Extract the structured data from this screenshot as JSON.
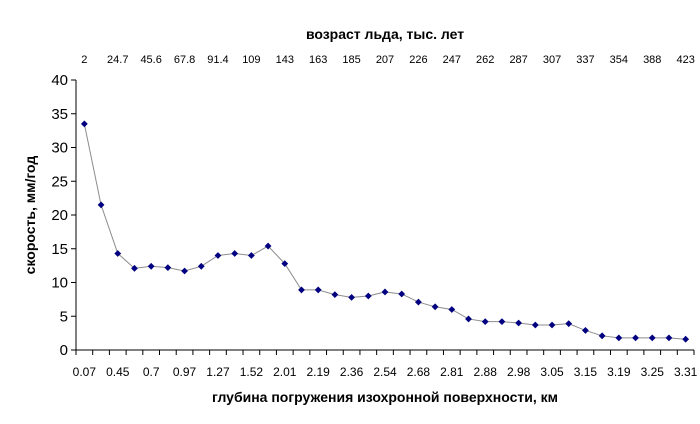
{
  "chart_data": {
    "type": "line",
    "title": "",
    "xlabel": "глубина погружения изохронной поверхности, км",
    "x2label": "возраст льда, тыс. лет",
    "ylabel": "скорость, мм/год",
    "ylim": [
      0,
      40
    ],
    "yticks": [
      "0",
      "5",
      "10",
      "15",
      "20",
      "25",
      "30",
      "35",
      "40"
    ],
    "grid": false,
    "legend": "none",
    "marker": "diamond",
    "colors": {
      "marker": "#000080",
      "line": "#8c8c8c",
      "axis": "#000000"
    },
    "bottom_tick_labels": [
      "0.07",
      "0.45",
      "0.7",
      "0.97",
      "1.27",
      "1.52",
      "2.01",
      "2.19",
      "2.36",
      "2.54",
      "2.68",
      "2.81",
      "2.88",
      "2.98",
      "3.05",
      "3.15",
      "3.19",
      "3.25",
      "3.31"
    ],
    "top_tick_labels": [
      "2",
      "24.7",
      "45.6",
      "67.8",
      "91.4",
      "109",
      "143",
      "163",
      "185",
      "207",
      "226",
      "247",
      "262",
      "287",
      "307",
      "337",
      "354",
      "388",
      "423"
    ],
    "series": [
      {
        "values": [
          33.5,
          21.5,
          14.3,
          12.1,
          12.4,
          12.2,
          11.7,
          12.4,
          14.0,
          14.3,
          14.0,
          15.4,
          12.8,
          8.9,
          8.9,
          8.2,
          7.8,
          8.0,
          8.6,
          8.3,
          7.1,
          6.4,
          6.0,
          4.6,
          4.2,
          4.2,
          4.0,
          3.7,
          3.7,
          3.9,
          2.9,
          2.1,
          1.8,
          1.8,
          1.8,
          1.8,
          1.6
        ]
      }
    ]
  }
}
